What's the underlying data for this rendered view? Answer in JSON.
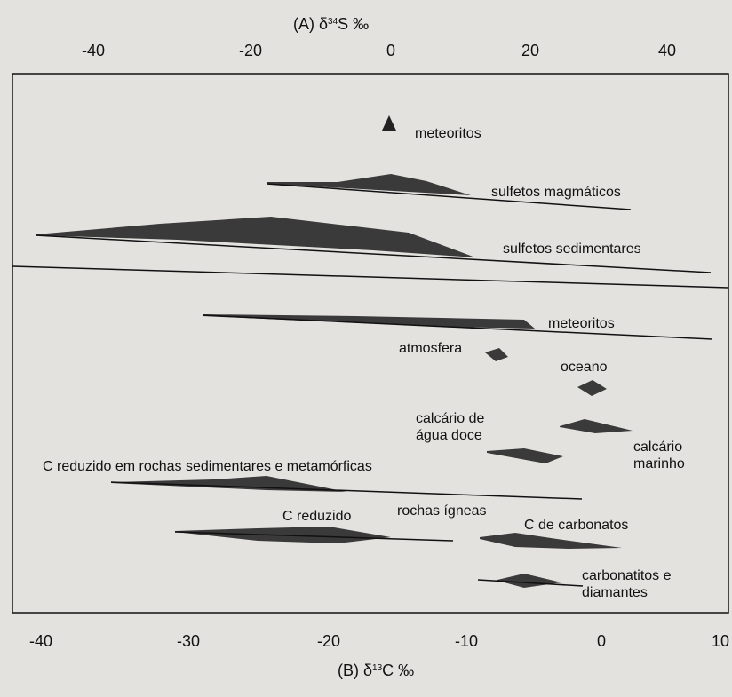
{
  "panel_a": {
    "title_prefix": "(A) δ",
    "title_sup": "34",
    "title_suffix": "S ‰",
    "ticks": [
      "-40",
      "-20",
      "0",
      "20",
      "40"
    ],
    "labels": {
      "meteoritos": "meteoritos",
      "sulfetos_magmaticos": "sulfetos magmáticos",
      "sulfetos_sedimentares": "sulfetos sedimentares"
    }
  },
  "panel_b": {
    "title_prefix": "(B) δ",
    "title_sup": "13",
    "title_suffix": "C ‰",
    "ticks": [
      "-40",
      "-30",
      "-20",
      "-10",
      "0",
      "10"
    ],
    "labels": {
      "meteoritos": "meteoritos",
      "atmosfera": "atmosfera",
      "oceano": "oceano",
      "calcario_agua_doce": "calcário de água doce",
      "calcario_marinho": "calcário marinho",
      "c_reduzido_rochas_sed_met": "C reduzido em rochas sedimentares e metamórficas",
      "rochas_igneas": "rochas ígneas",
      "c_reduzido": "C reduzido",
      "c_de_carbonatos": "C de carbonatos",
      "carbonatitos_diamantes": "carbonatitos e diamantes"
    }
  },
  "colors": {
    "fill": "#3a3a3a",
    "line": "#111111",
    "background": "#e4e2df"
  }
}
